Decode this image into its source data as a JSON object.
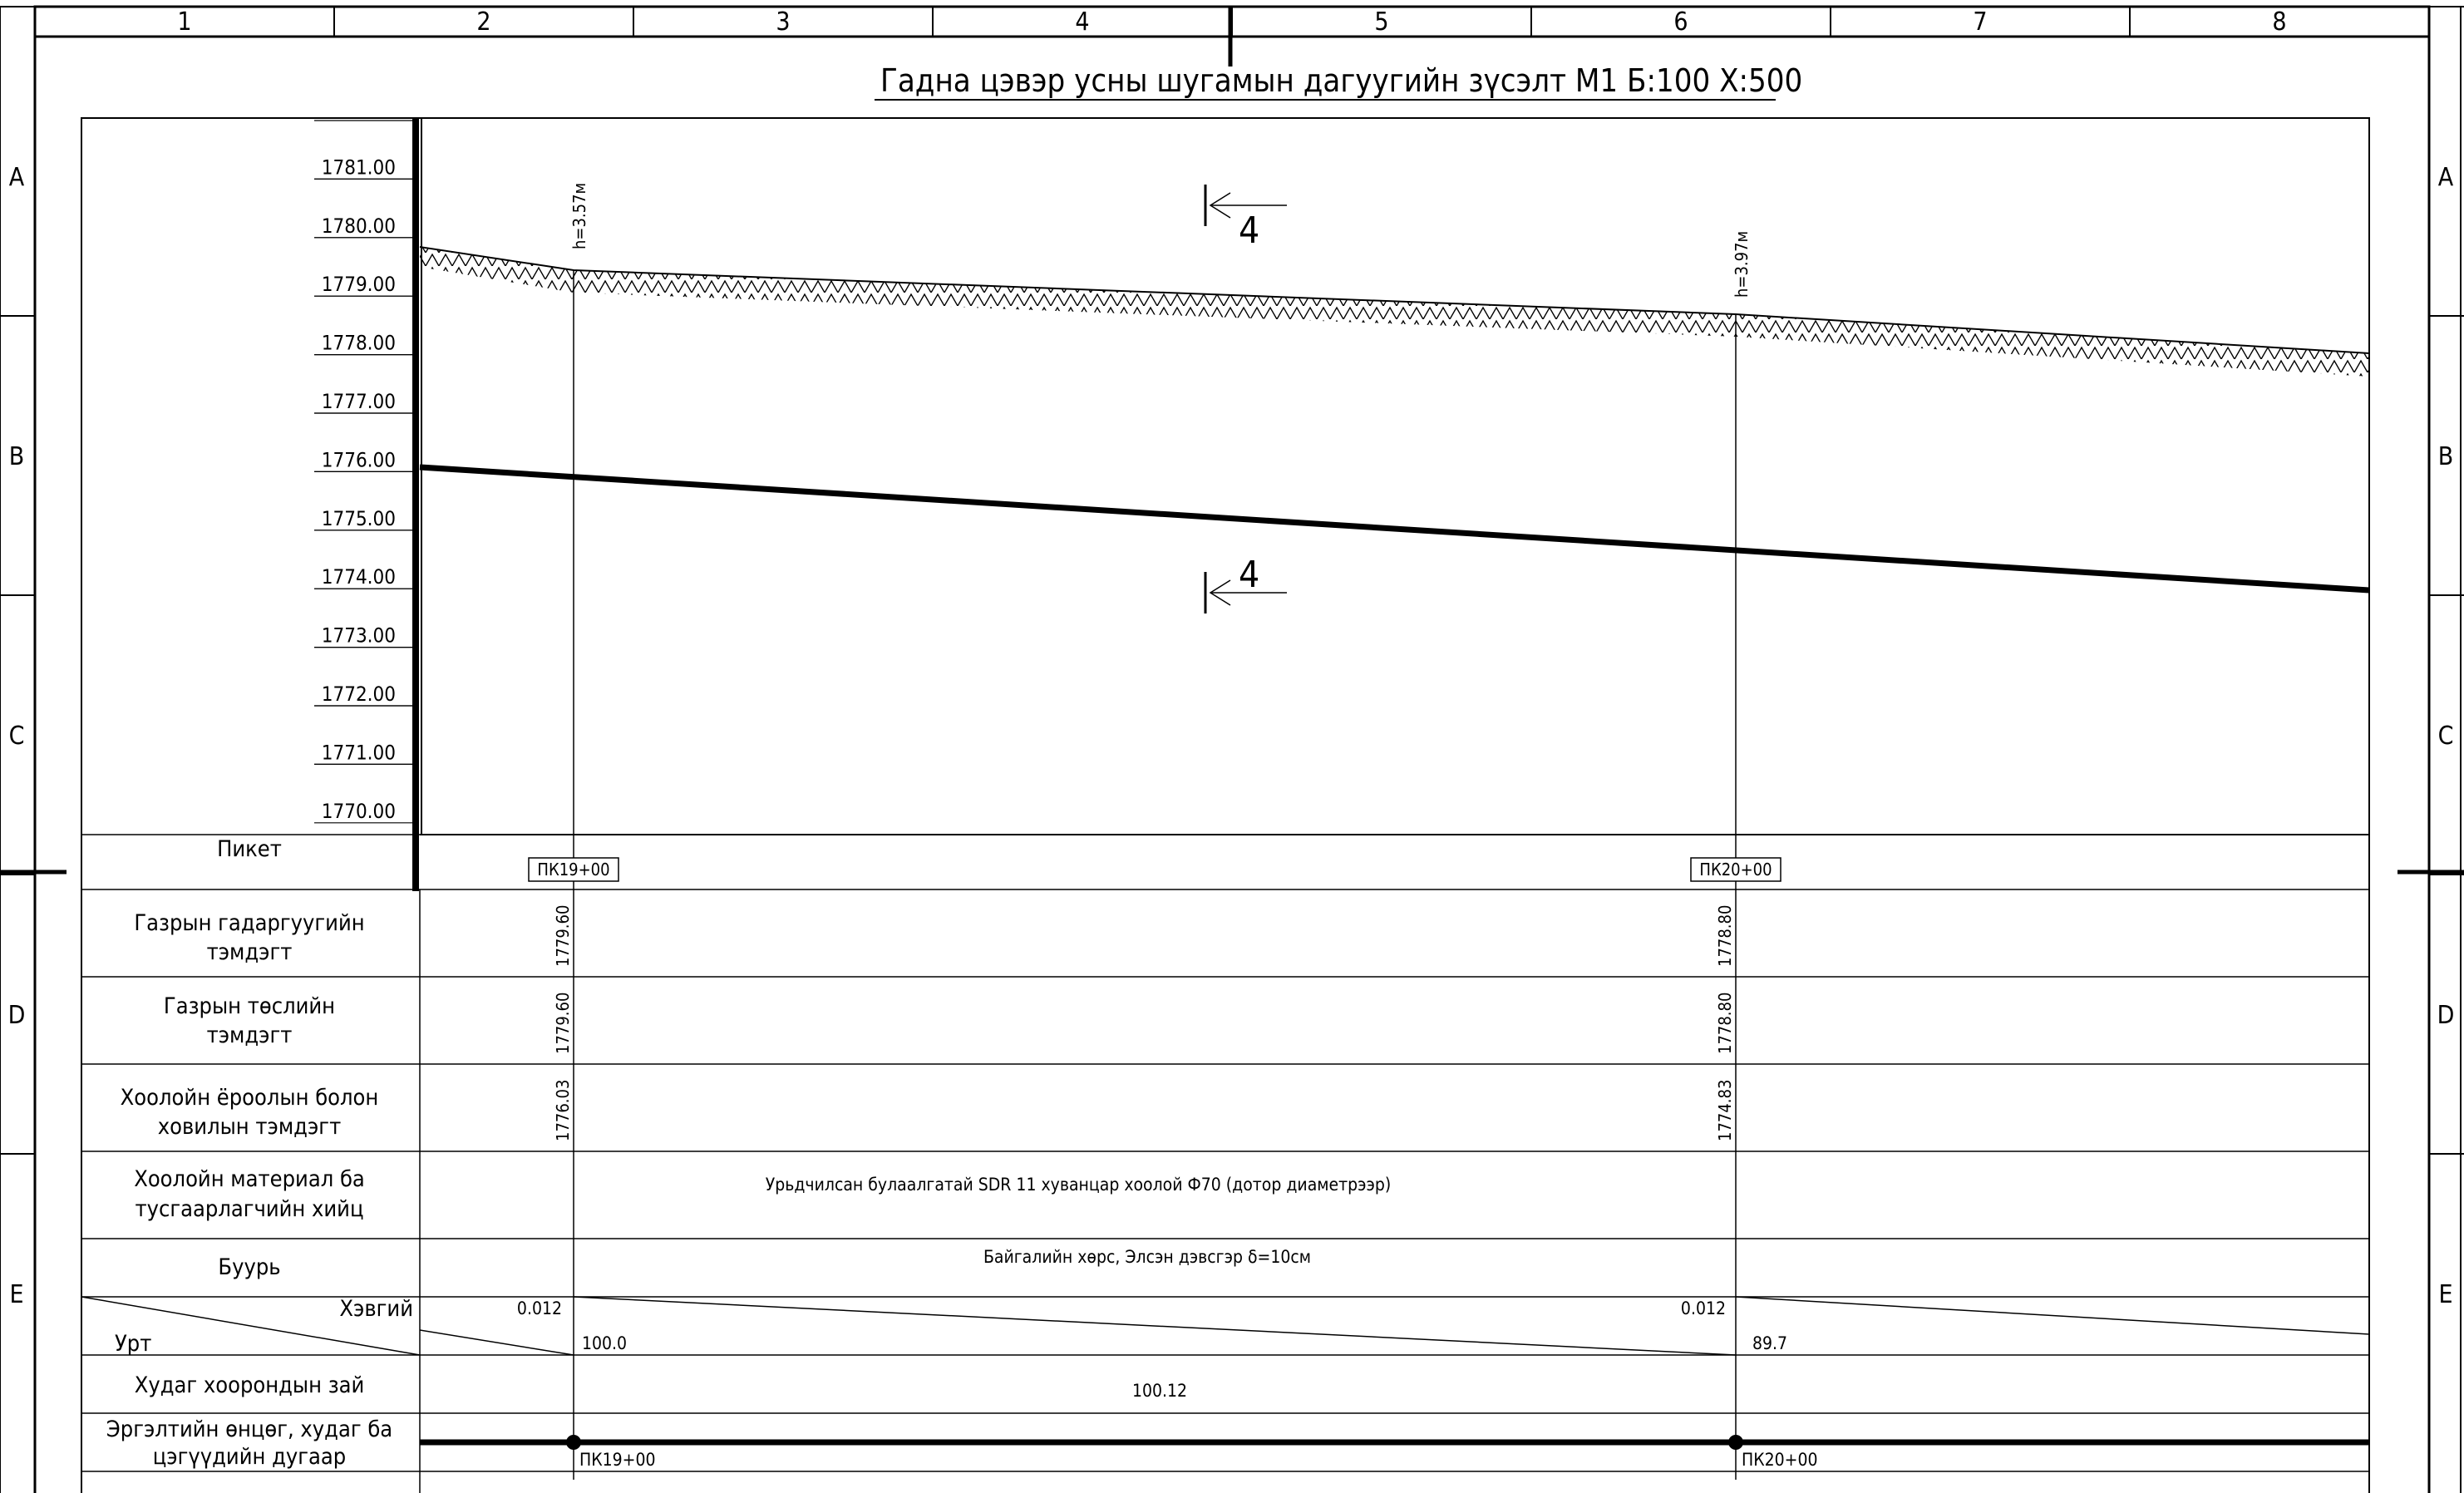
{
  "title": "Гадна цэвэр усны шугамын дагуугийн зүсэлт М1 Б:100 Х:500",
  "col_zones": [
    "1",
    "2",
    "3",
    "4",
    "5",
    "6",
    "7",
    "8"
  ],
  "row_zones": [
    "A",
    "B",
    "C",
    "D",
    "E"
  ],
  "elevation_scale": [
    "1781.00",
    "1780.00",
    "1779.00",
    "1778.00",
    "1777.00",
    "1776.00",
    "1775.00",
    "1774.00",
    "1773.00",
    "1772.00",
    "1771.00",
    "1770.00"
  ],
  "section_mark": "4",
  "depth_labels": [
    "h=3.57м",
    "h=3.97м"
  ],
  "row_labels": {
    "picket": "Пикет",
    "ground_surface": [
      "Газрын гадаргуугийн",
      "тэмдэгт"
    ],
    "ground_design": [
      "Газрын төслийн",
      "тэмдэгт"
    ],
    "pipe_invert": [
      "Хоолойн ёроолын болон",
      "ховилын тэмдэгт"
    ],
    "pipe_material": [
      "Хоолойн материал ба",
      "тусгаарлагчийн хийц"
    ],
    "foundation": "Буурь",
    "slope": "Хэвгий",
    "length": "Урт",
    "well_distance": "Худаг хоорондын зай",
    "well_numbers": [
      "Эргэлтийн өнцөг, худаг ба",
      "цэгүүдийн дугаар"
    ]
  },
  "stations": [
    {
      "picket": "ПК19+00",
      "ground_surface": "1779.60",
      "ground_design": "1779.60",
      "pipe_invert": "1776.03",
      "slope": "0.012",
      "length": "100.0"
    },
    {
      "picket": "ПК20+00",
      "ground_surface": "1778.80",
      "ground_design": "1778.80",
      "pipe_invert": "1774.83",
      "slope": "0.012",
      "length": "89.7"
    }
  ],
  "pipe_material_text": "Урьдчилсан булаалгатай SDR 11 хуванцар  хоолой Ф70 (дотор диаметрээр)",
  "foundation_text": "Байгалийн хөрс, Элсэн дэвсгэр δ=10см",
  "well_distance_value": "100.12"
}
